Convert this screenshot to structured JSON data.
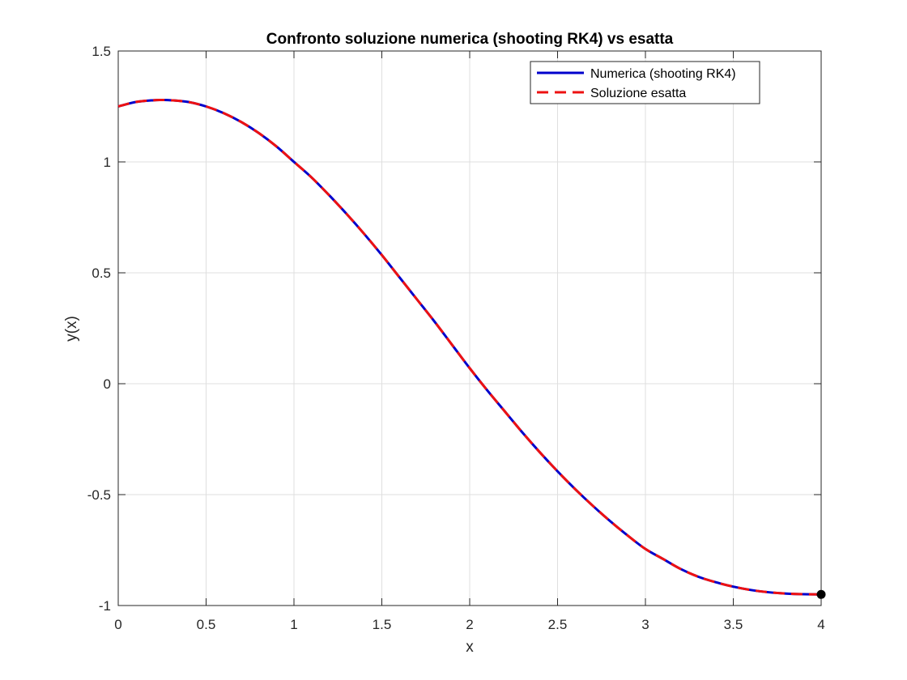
{
  "chart_data": {
    "type": "line",
    "title": "Confronto soluzione numerica (shooting RK4) vs esatta",
    "xlabel": "x",
    "ylabel": "y(x)",
    "xlim": [
      0,
      4
    ],
    "ylim": [
      -1,
      1.5
    ],
    "xticks": [
      0,
      0.5,
      1,
      1.5,
      2,
      2.5,
      3,
      3.5,
      4
    ],
    "xtick_labels": [
      "0",
      "0.5",
      "1",
      "1.5",
      "2",
      "2.5",
      "3",
      "3.5",
      "4"
    ],
    "yticks": [
      -1,
      -0.5,
      0,
      0.5,
      1,
      1.5
    ],
    "ytick_labels": [
      "-1",
      "-0.5",
      "0",
      "0.5",
      "1",
      "1.5"
    ],
    "grid": true,
    "legend_position": "top-right",
    "series": [
      {
        "name": "Numerica (shooting RK4)",
        "color": "#0000cc",
        "style": "solid",
        "x": [
          0,
          0.1,
          0.2,
          0.25,
          0.3,
          0.4,
          0.5,
          0.6,
          0.7,
          0.8,
          0.9,
          1.0,
          1.1,
          1.2,
          1.3,
          1.4,
          1.5,
          1.6,
          1.7,
          1.8,
          1.9,
          2.0,
          2.1,
          2.2,
          2.3,
          2.4,
          2.5,
          2.6,
          2.7,
          2.8,
          2.9,
          3.0,
          3.1,
          3.2,
          3.3,
          3.4,
          3.5,
          3.6,
          3.7,
          3.8,
          3.9,
          4.0
        ],
        "y": [
          1.25,
          1.27,
          1.278,
          1.279,
          1.278,
          1.27,
          1.25,
          1.22,
          1.18,
          1.13,
          1.07,
          1.0,
          0.93,
          0.85,
          0.765,
          0.675,
          0.58,
          0.48,
          0.38,
          0.28,
          0.175,
          0.07,
          -0.03,
          -0.125,
          -0.22,
          -0.31,
          -0.395,
          -0.475,
          -0.55,
          -0.62,
          -0.685,
          -0.745,
          -0.79,
          -0.835,
          -0.87,
          -0.895,
          -0.915,
          -0.93,
          -0.94,
          -0.946,
          -0.949,
          -0.95
        ]
      },
      {
        "name": "Soluzione esatta",
        "color": "#ee1111",
        "style": "dashed",
        "x": [
          0,
          0.1,
          0.2,
          0.25,
          0.3,
          0.4,
          0.5,
          0.6,
          0.7,
          0.8,
          0.9,
          1.0,
          1.1,
          1.2,
          1.3,
          1.4,
          1.5,
          1.6,
          1.7,
          1.8,
          1.9,
          2.0,
          2.1,
          2.2,
          2.3,
          2.4,
          2.5,
          2.6,
          2.7,
          2.8,
          2.9,
          3.0,
          3.1,
          3.2,
          3.3,
          3.4,
          3.5,
          3.6,
          3.7,
          3.8,
          3.9,
          4.0
        ],
        "y": [
          1.25,
          1.27,
          1.278,
          1.279,
          1.278,
          1.27,
          1.25,
          1.22,
          1.18,
          1.13,
          1.07,
          1.0,
          0.93,
          0.85,
          0.765,
          0.675,
          0.58,
          0.48,
          0.38,
          0.28,
          0.175,
          0.07,
          -0.03,
          -0.125,
          -0.22,
          -0.31,
          -0.395,
          -0.475,
          -0.55,
          -0.62,
          -0.685,
          -0.745,
          -0.79,
          -0.835,
          -0.87,
          -0.895,
          -0.915,
          -0.93,
          -0.94,
          -0.946,
          -0.949,
          -0.95
        ]
      }
    ],
    "markers": [
      {
        "x": 4,
        "y": -0.95,
        "color": "#000000"
      }
    ]
  }
}
